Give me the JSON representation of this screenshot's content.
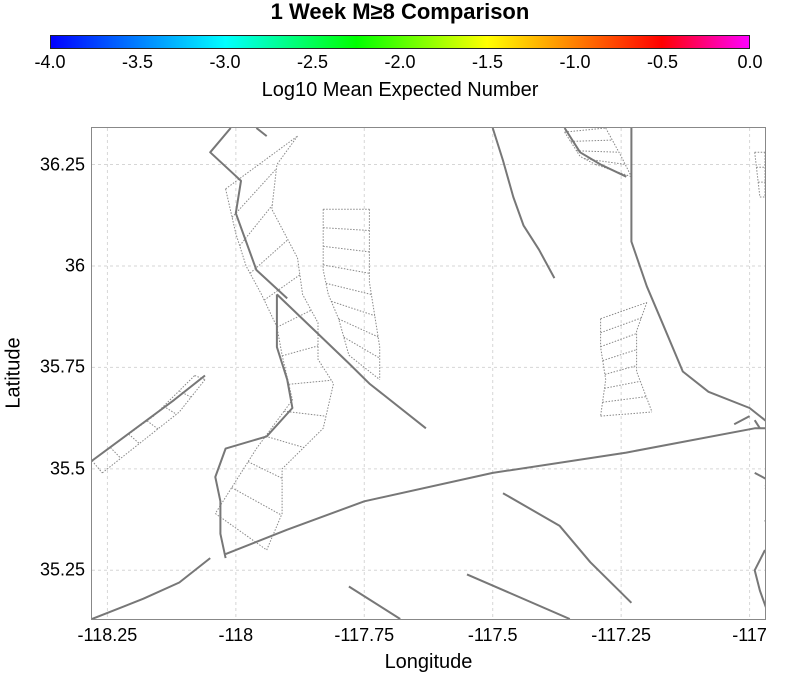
{
  "title": "1 Week M≥8 Comparison",
  "colorbar": {
    "label": "Log10 Mean Expected Number",
    "ticks": [
      "-4.0",
      "-3.5",
      "-3.0",
      "-2.5",
      "-2.0",
      "-1.5",
      "-1.0",
      "-0.5",
      "0.0"
    ],
    "range": [
      -4.0,
      0.0
    ],
    "colors": [
      "#0000ff",
      "#00ffff",
      "#00ff00",
      "#ffff00",
      "#ff8000",
      "#ff0000",
      "#ff00ff"
    ]
  },
  "axes": {
    "xlabel": "Longitude",
    "ylabel": "Latitude",
    "xlim": [
      -118.28,
      -116.97
    ],
    "ylim": [
      35.13,
      36.34
    ],
    "xticks": [
      {
        "value": -118.25,
        "label": "-118.25"
      },
      {
        "value": -118.0,
        "label": "-118"
      },
      {
        "value": -117.75,
        "label": "-117.75"
      },
      {
        "value": -117.5,
        "label": "-117.5"
      },
      {
        "value": -117.25,
        "label": "-117.25"
      },
      {
        "value": -117.0,
        "label": "-117"
      }
    ],
    "yticks": [
      {
        "value": 36.25,
        "label": "36.25"
      },
      {
        "value": 36.0,
        "label": "36"
      },
      {
        "value": 35.75,
        "label": "35.75"
      },
      {
        "value": 35.5,
        "label": "35.5"
      },
      {
        "value": 35.25,
        "label": "35.25"
      }
    ],
    "grid": true
  },
  "styles": {
    "fault_color": "#777777",
    "section_color": "#888888",
    "grid_color": "#d6d6d6"
  },
  "faults": [
    [
      [
        -118.01,
        36.34
      ],
      [
        -118.05,
        36.28
      ],
      [
        -117.99,
        36.21
      ],
      [
        -118.0,
        36.13
      ],
      [
        -117.98,
        36.06
      ],
      [
        -117.96,
        35.99
      ],
      [
        -117.9,
        35.92
      ]
    ],
    [
      [
        -117.96,
        36.34
      ],
      [
        -117.94,
        36.32
      ]
    ],
    [
      [
        -117.92,
        35.93
      ],
      [
        -117.78,
        35.76
      ],
      [
        -117.74,
        35.71
      ],
      [
        -117.63,
        35.6
      ]
    ],
    [
      [
        -117.92,
        35.93
      ],
      [
        -117.92,
        35.8
      ],
      [
        -117.9,
        35.72
      ],
      [
        -117.89,
        35.65
      ],
      [
        -117.94,
        35.58
      ],
      [
        -118.02,
        35.55
      ],
      [
        -118.04,
        35.48
      ],
      [
        -118.03,
        35.42
      ],
      [
        -118.03,
        35.34
      ],
      [
        -118.02,
        35.28
      ]
    ],
    [
      [
        -118.02,
        35.29
      ],
      [
        -117.9,
        35.35
      ],
      [
        -117.75,
        35.42
      ],
      [
        -117.5,
        35.49
      ],
      [
        -117.24,
        35.54
      ],
      [
        -116.99,
        35.6
      ],
      [
        -116.97,
        35.6
      ]
    ],
    [
      [
        -117.5,
        36.34
      ],
      [
        -117.48,
        36.26
      ],
      [
        -117.46,
        36.17
      ],
      [
        -117.44,
        36.1
      ],
      [
        -117.41,
        36.04
      ],
      [
        -117.38,
        35.97
      ]
    ],
    [
      [
        -117.36,
        36.34
      ],
      [
        -117.33,
        36.28
      ],
      [
        -117.29,
        36.25
      ],
      [
        -117.24,
        36.22
      ]
    ],
    [
      [
        -117.23,
        36.34
      ],
      [
        -117.23,
        36.25
      ],
      [
        -117.23,
        36.06
      ],
      [
        -117.2,
        35.95
      ],
      [
        -117.17,
        35.86
      ],
      [
        -117.13,
        35.74
      ],
      [
        -117.08,
        35.69
      ],
      [
        -117.0,
        35.65
      ],
      [
        -116.96,
        35.61
      ]
    ],
    [
      [
        -118.28,
        35.13
      ],
      [
        -118.18,
        35.18
      ],
      [
        -118.11,
        35.22
      ],
      [
        -118.05,
        35.28
      ]
    ],
    [
      [
        -118.28,
        35.52
      ],
      [
        -118.12,
        35.67
      ],
      [
        -118.06,
        35.73
      ]
    ],
    [
      [
        -117.48,
        35.44
      ],
      [
        -117.37,
        35.36
      ],
      [
        -117.31,
        35.27
      ],
      [
        -117.23,
        35.17
      ]
    ],
    [
      [
        -117.55,
        35.24
      ],
      [
        -117.35,
        35.13
      ]
    ],
    [
      [
        -117.78,
        35.21
      ],
      [
        -117.68,
        35.13
      ]
    ],
    [
      [
        -116.99,
        35.49
      ],
      [
        -116.96,
        35.47
      ]
    ],
    [
      [
        -116.96,
        35.5
      ],
      [
        -116.89,
        35.48
      ],
      [
        -116.97,
        35.45
      ]
    ],
    [
      [
        -116.97,
        35.46
      ],
      [
        -116.92,
        35.44
      ],
      [
        -116.97,
        35.44
      ]
    ],
    [
      [
        -116.97,
        35.37
      ],
      [
        -116.95,
        35.4
      ],
      [
        -116.93,
        35.43
      ]
    ],
    [
      [
        -116.92,
        35.43
      ],
      [
        -116.96,
        35.41
      ]
    ],
    [
      [
        -116.98,
        35.6
      ],
      [
        -116.99,
        35.62
      ]
    ],
    [
      [
        -117.03,
        35.61
      ],
      [
        -117.0,
        35.63
      ]
    ],
    [
      [
        -116.96,
        35.13
      ],
      [
        -116.98,
        35.2
      ],
      [
        -116.99,
        35.25
      ],
      [
        -116.97,
        35.3
      ]
    ]
  ],
  "sections": [
    {
      "left": [
        [
          -118.02,
          36.19
        ],
        [
          -118.0,
          36.08
        ],
        [
          -117.98,
          36.0
        ],
        [
          -117.95,
          35.93
        ],
        [
          -117.92,
          35.85
        ],
        [
          -117.91,
          35.78
        ],
        [
          -117.89,
          35.67
        ],
        [
          -117.96,
          35.55
        ],
        [
          -118.04,
          35.39
        ]
      ],
      "right": [
        [
          -117.88,
          36.32
        ],
        [
          -117.92,
          36.25
        ],
        [
          -117.93,
          36.14
        ],
        [
          -117.88,
          36.02
        ],
        [
          -117.87,
          35.93
        ],
        [
          -117.84,
          35.86
        ],
        [
          -117.84,
          35.77
        ],
        [
          -117.81,
          35.71
        ],
        [
          -117.83,
          35.6
        ],
        [
          -117.91,
          35.5
        ],
        [
          -117.91,
          35.39
        ],
        [
          -117.94,
          35.3
        ]
      ],
      "rungs": 12
    },
    {
      "left": [
        [
          -117.83,
          36.14
        ],
        [
          -117.83,
          36.05
        ],
        [
          -117.83,
          35.99
        ],
        [
          -117.82,
          35.93
        ],
        [
          -117.8,
          35.87
        ],
        [
          -117.78,
          35.78
        ]
      ],
      "right": [
        [
          -117.74,
          36.14
        ],
        [
          -117.74,
          36.05
        ],
        [
          -117.74,
          35.96
        ],
        [
          -117.73,
          35.88
        ],
        [
          -117.72,
          35.8
        ],
        [
          -117.72,
          35.72
        ]
      ],
      "rungs": 8
    },
    {
      "left": [
        [
          -117.29,
          35.87
        ],
        [
          -117.29,
          35.8
        ],
        [
          -117.28,
          35.72
        ],
        [
          -117.29,
          35.63
        ]
      ],
      "right": [
        [
          -117.2,
          35.91
        ],
        [
          -117.22,
          35.84
        ],
        [
          -117.22,
          35.74
        ],
        [
          -117.19,
          35.64
        ]
      ],
      "rungs": 7
    },
    {
      "left": [
        [
          -117.36,
          36.33
        ],
        [
          -117.33,
          36.27
        ],
        [
          -117.3,
          36.25
        ]
      ],
      "right": [
        [
          -117.28,
          36.34
        ],
        [
          -117.25,
          36.27
        ],
        [
          -117.23,
          36.22
        ]
      ],
      "rungs": 4
    },
    {
      "left": [
        [
          -118.28,
          35.52
        ],
        [
          -118.16,
          35.63
        ],
        [
          -118.08,
          35.73
        ]
      ],
      "right": [
        [
          -118.26,
          35.49
        ],
        [
          -118.11,
          35.64
        ],
        [
          -118.06,
          35.72
        ]
      ],
      "rungs": 6
    },
    {
      "left": [
        [
          -116.99,
          36.28
        ],
        [
          -116.98,
          36.17
        ]
      ],
      "right": [
        [
          -116.97,
          36.28
        ],
        [
          -116.97,
          36.17
        ]
      ],
      "rungs": 3
    }
  ]
}
